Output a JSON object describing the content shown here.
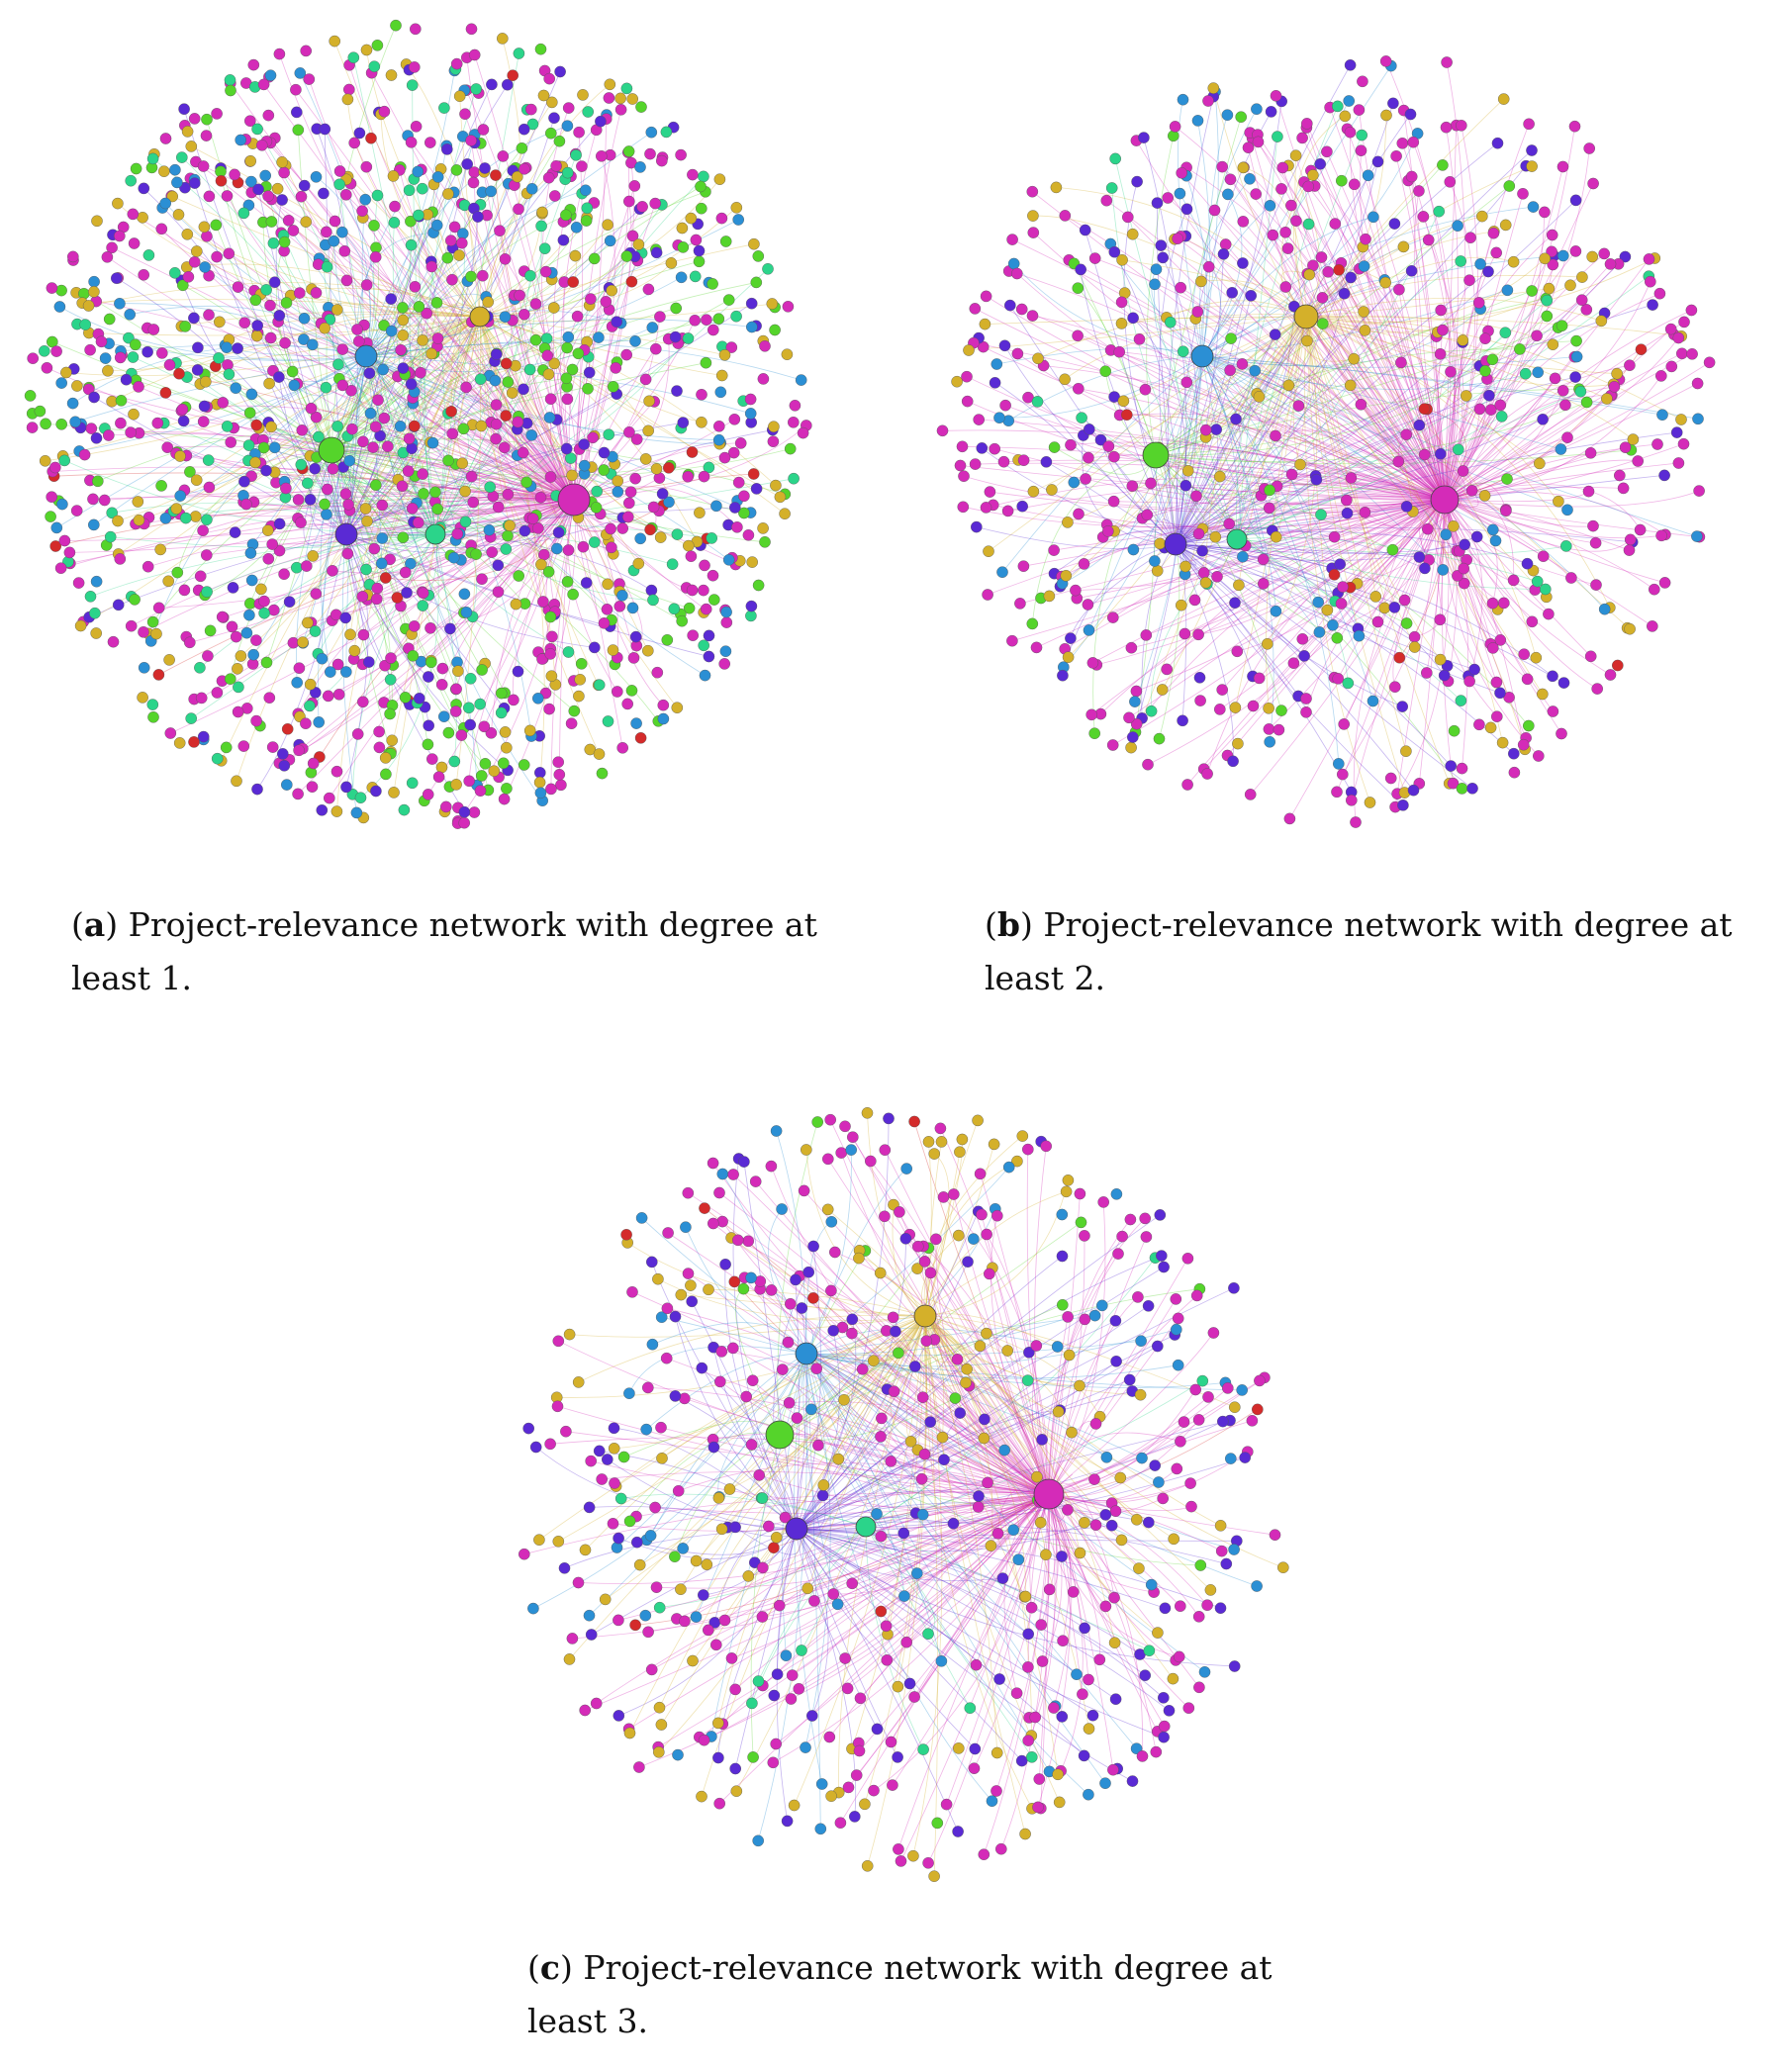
{
  "palette": {
    "magenta": "#d42bb8",
    "gold": "#d4b02a",
    "blue": "#2b8fd4",
    "violet": "#5a2ad4",
    "green": "#55d42b",
    "teal": "#2bd48a",
    "red": "#d42b2b"
  },
  "panels": [
    {
      "id": "a",
      "caption_label": "a",
      "caption_text": "Project-relevance network with degree at least 1.",
      "node_count": 1400,
      "hubs": [
        {
          "color": "magenta"
        },
        {
          "color": "violet"
        },
        {
          "color": "green"
        },
        {
          "color": "blue"
        },
        {
          "color": "gold"
        },
        {
          "color": "teal"
        }
      ]
    },
    {
      "id": "b",
      "caption_label": "b",
      "caption_text": "Project-relevance network with degree at least 2.",
      "node_count": 700,
      "hubs": [
        {
          "color": "magenta"
        },
        {
          "color": "violet"
        },
        {
          "color": "green"
        },
        {
          "color": "blue"
        },
        {
          "color": "gold"
        },
        {
          "color": "teal"
        }
      ]
    },
    {
      "id": "c",
      "caption_label": "c",
      "caption_text": "Project-relevance network with degree at least 3.",
      "node_count": 560,
      "hubs": [
        {
          "color": "magenta"
        },
        {
          "color": "violet"
        },
        {
          "color": "green"
        },
        {
          "color": "blue"
        },
        {
          "color": "gold"
        },
        {
          "color": "teal"
        }
      ]
    }
  ]
}
